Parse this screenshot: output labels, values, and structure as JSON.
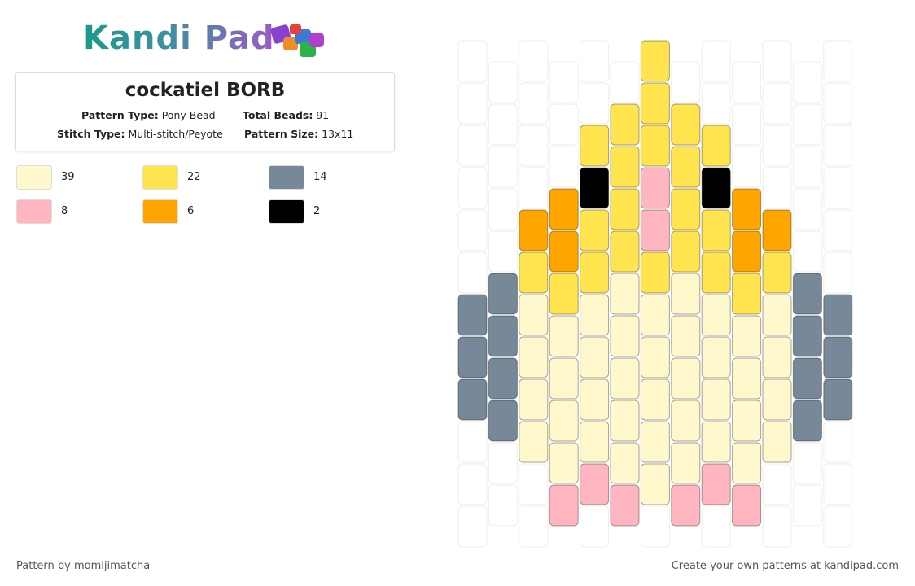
{
  "logo": "Kandi Pad",
  "title": "cockatiel BORB",
  "details": [
    [
      {
        "label": "Pattern Type:",
        "value": "Pony Bead"
      },
      {
        "label": "Total Beads:",
        "value": 91
      }
    ],
    [
      {
        "label": "Stitch Type:",
        "value": "Multi-stitch/Peyote"
      },
      {
        "label": "Pattern Size:",
        "value": "13x11"
      }
    ]
  ],
  "palette": [
    {
      "color": "#fff8cc",
      "count": 39
    },
    {
      "color": "#ffe44f",
      "count": 22
    },
    {
      "color": "#778899",
      "count": 14
    },
    {
      "color": "#ffb6c1",
      "count": 8
    },
    {
      "color": "#ffa500",
      "count": 6
    },
    {
      "color": "#000000",
      "count": 2
    }
  ],
  "beads": [
    [
      null,
      null,
      null,
      null,
      null,
      null,
      2,
      2,
      2,
      null,
      null,
      null
    ],
    [
      null,
      null,
      null,
      null,
      null,
      2,
      2,
      2,
      2,
      null,
      null
    ],
    [
      null,
      null,
      null,
      null,
      4,
      1,
      0,
      0,
      0,
      0,
      null,
      null
    ],
    [
      null,
      null,
      null,
      4,
      4,
      1,
      0,
      0,
      0,
      0,
      3
    ],
    [
      null,
      null,
      1,
      5,
      1,
      1,
      0,
      0,
      0,
      0,
      3,
      null
    ],
    [
      null,
      1,
      1,
      1,
      1,
      0,
      0,
      0,
      0,
      0,
      3
    ],
    [
      1,
      1,
      1,
      3,
      3,
      1,
      0,
      0,
      0,
      0,
      0,
      null
    ],
    [
      null,
      1,
      1,
      1,
      1,
      0,
      0,
      0,
      0,
      0,
      3
    ],
    [
      null,
      null,
      1,
      5,
      1,
      1,
      0,
      0,
      0,
      0,
      3,
      null
    ],
    [
      null,
      null,
      null,
      4,
      4,
      1,
      0,
      0,
      0,
      0,
      3
    ],
    [
      null,
      null,
      null,
      null,
      4,
      1,
      0,
      0,
      0,
      0,
      null,
      null
    ],
    [
      null,
      null,
      null,
      null,
      null,
      2,
      2,
      2,
      2,
      null,
      null
    ],
    [
      null,
      null,
      null,
      null,
      null,
      null,
      2,
      2,
      2,
      null,
      null,
      null
    ]
  ],
  "footer": {
    "left": "Pattern by momijimatcha",
    "right": "Create your own patterns at kandipad.com"
  }
}
